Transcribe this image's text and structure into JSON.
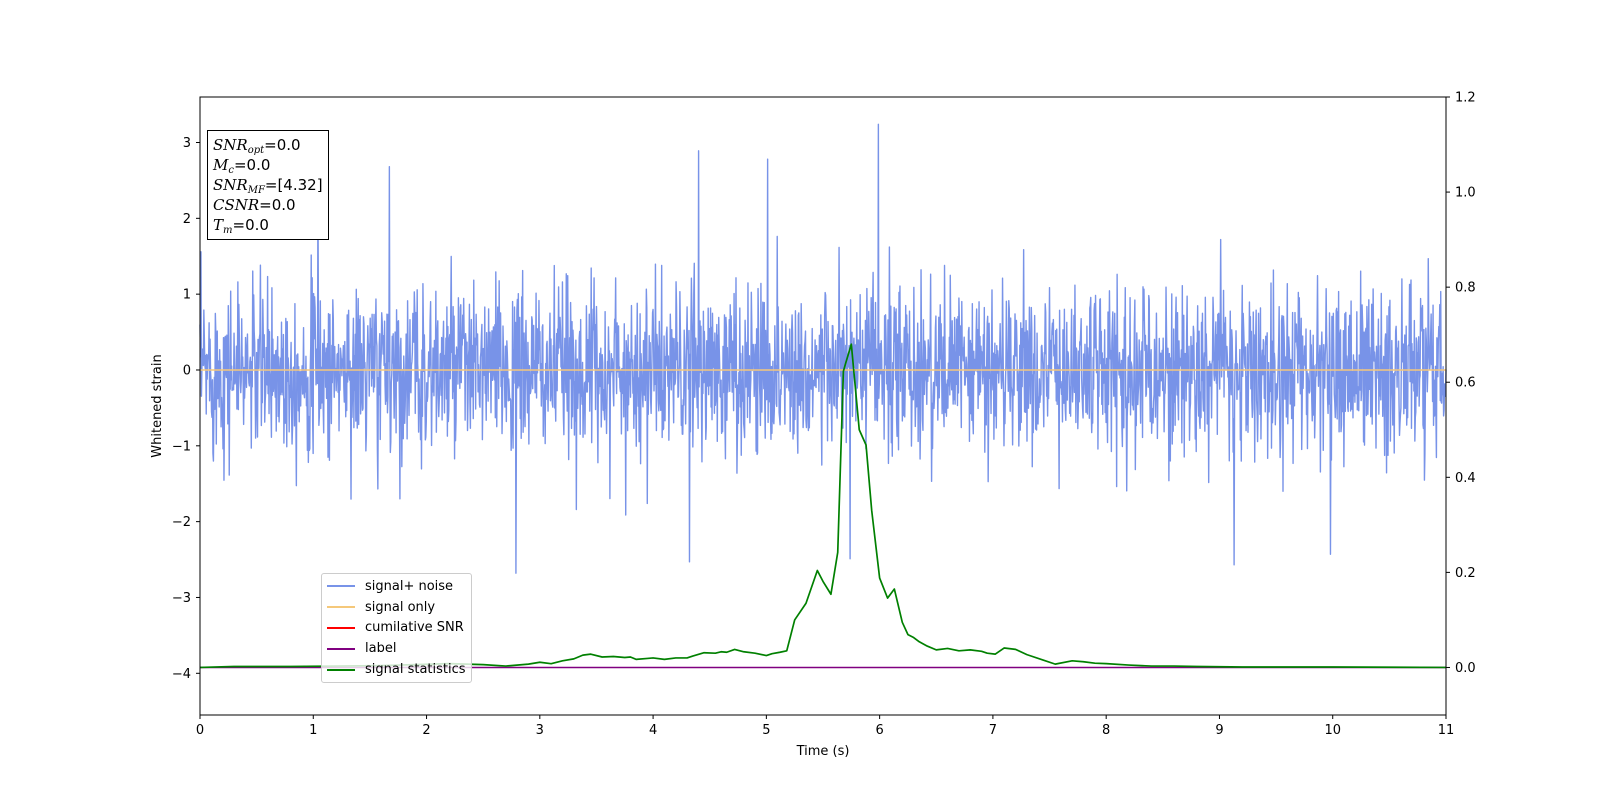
{
  "chart_data": {
    "type": "line",
    "xlabel": "Time (s)",
    "ylabel": "Whitened strain",
    "xlim": [
      0,
      11
    ],
    "ylim": [
      -4.55,
      3.6
    ],
    "y2lim": [
      -0.1,
      1.2
    ],
    "grid": false,
    "x_ticks": [
      "0",
      "1",
      "2",
      "3",
      "4",
      "5",
      "6",
      "7",
      "8",
      "9",
      "10",
      "11"
    ],
    "y_ticks": [
      "−4",
      "−3",
      "−2",
      "−1",
      "0",
      "1",
      "2",
      "3"
    ],
    "y2_ticks": [
      "0.0",
      "0.2",
      "0.4",
      "0.6",
      "0.8",
      "1.0",
      "1.2"
    ],
    "legend_position": "lower-left",
    "series": [
      {
        "name": "signal+ noise",
        "color": "#7893e8",
        "axis": "left",
        "description": "whitened noise band, roughly -1.5 to 1.5 with spikes",
        "spike_peaks": [
          {
            "x": 1.04,
            "y": 2.28
          },
          {
            "x": 1.67,
            "y": 2.68
          },
          {
            "x": 2.79,
            "y": -2.68
          },
          {
            "x": 4.32,
            "y": -2.53
          },
          {
            "x": 4.4,
            "y": 2.89
          },
          {
            "x": 5.01,
            "y": 2.78
          },
          {
            "x": 5.74,
            "y": -2.49
          },
          {
            "x": 5.99,
            "y": 3.24
          },
          {
            "x": 9.13,
            "y": -2.57
          },
          {
            "x": 9.98,
            "y": -2.43
          }
        ]
      },
      {
        "name": "signal only",
        "color": "#f5c87a",
        "axis": "left",
        "x": [
          0,
          11
        ],
        "y": [
          0,
          0
        ]
      },
      {
        "name": "cumilative SNR",
        "color": "#ff0000",
        "axis": "right",
        "x": [],
        "y": []
      },
      {
        "name": "label",
        "color": "#800080",
        "axis": "right",
        "x": [
          0,
          11
        ],
        "y": [
          0,
          0
        ]
      },
      {
        "name": "signal statistics",
        "color": "#008000",
        "axis": "right",
        "x": [
          0,
          0.3,
          0.8,
          1.2,
          1.6,
          1.9,
          2.2,
          2.5,
          2.7,
          2.9,
          3.0,
          3.1,
          3.2,
          3.3,
          3.38,
          3.45,
          3.55,
          3.65,
          3.75,
          3.8,
          3.85,
          3.95,
          4.0,
          4.1,
          4.2,
          4.3,
          4.35,
          4.45,
          4.55,
          4.6,
          4.65,
          4.72,
          4.8,
          4.9,
          5.0,
          5.05,
          5.12,
          5.18,
          5.25,
          5.35,
          5.45,
          5.5,
          5.57,
          5.63,
          5.68,
          5.7,
          5.75,
          5.82,
          5.88,
          5.93,
          6.0,
          6.07,
          6.13,
          6.2,
          6.25,
          6.3,
          6.35,
          6.42,
          6.5,
          6.6,
          6.7,
          6.8,
          6.9,
          6.95,
          7.02,
          7.1,
          7.2,
          7.3,
          7.45,
          7.55,
          7.7,
          7.8,
          7.9,
          8.0,
          8.2,
          8.4,
          8.6,
          8.8,
          9.2,
          10.0,
          11.0
        ],
        "y": [
          0.0,
          0.002,
          0.002,
          0.003,
          0.004,
          0.006,
          0.008,
          0.006,
          0.003,
          0.007,
          0.011,
          0.008,
          0.014,
          0.018,
          0.026,
          0.028,
          0.022,
          0.023,
          0.021,
          0.022,
          0.017,
          0.019,
          0.02,
          0.017,
          0.02,
          0.02,
          0.024,
          0.031,
          0.03,
          0.033,
          0.032,
          0.038,
          0.033,
          0.03,
          0.025,
          0.029,
          0.032,
          0.035,
          0.1,
          0.135,
          0.204,
          0.181,
          0.154,
          0.242,
          0.623,
          0.64,
          0.68,
          0.5,
          0.468,
          0.33,
          0.188,
          0.146,
          0.165,
          0.095,
          0.069,
          0.063,
          0.054,
          0.045,
          0.037,
          0.04,
          0.035,
          0.037,
          0.034,
          0.03,
          0.028,
          0.041,
          0.038,
          0.027,
          0.015,
          0.007,
          0.014,
          0.012,
          0.009,
          0.008,
          0.005,
          0.003,
          0.003,
          0.002,
          0.001,
          0.001,
          0.0
        ]
      }
    ]
  },
  "info_box": {
    "snr_opt": "=0.0",
    "mc": "=0.0",
    "snr_mf": "=[4.32]",
    "csnr": "=0.0",
    "tm": "=0.0"
  }
}
